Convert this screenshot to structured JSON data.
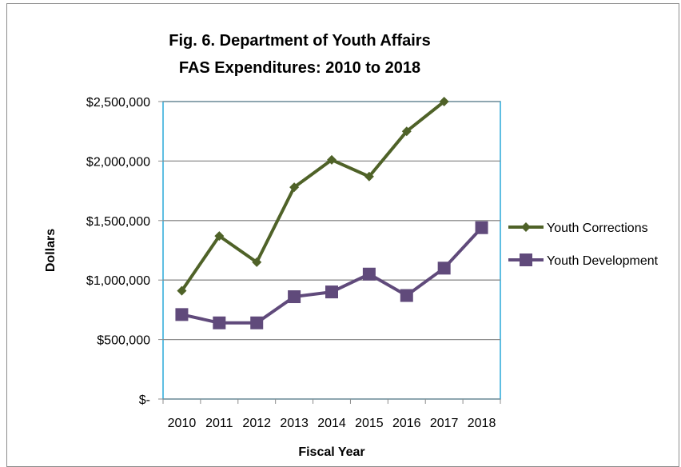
{
  "chart_data": {
    "type": "line",
    "title_line1": "Fig. 6.  Department of Youth Affairs",
    "title_line2": "FAS Expenditures:  2010 to 2018",
    "xlabel": "Fiscal Year",
    "ylabel": "Dollars",
    "categories": [
      "2010",
      "2011",
      "2012",
      "2013",
      "2014",
      "2015",
      "2016",
      "2017",
      "2018"
    ],
    "ylim": [
      0,
      2500000
    ],
    "yticks": [
      {
        "value": 2500000,
        "label": "$2,500,000"
      },
      {
        "value": 2000000,
        "label": "$2,000,000"
      },
      {
        "value": 1500000,
        "label": "$1,500,000"
      },
      {
        "value": 1000000,
        "label": "$1,000,000"
      },
      {
        "value": 500000,
        "label": "$500,000"
      },
      {
        "value": 0,
        "label": "$-"
      }
    ],
    "grid": true,
    "legend_position": "right",
    "series": [
      {
        "name": "Youth Corrections",
        "color": "#4f6228",
        "marker": "diamond",
        "values": [
          910000,
          1370000,
          1150000,
          1780000,
          2010000,
          1870000,
          2250000,
          2500000,
          null
        ]
      },
      {
        "name": "Youth Development",
        "color": "#604a7b",
        "marker": "square",
        "values": [
          710000,
          640000,
          640000,
          860000,
          900000,
          1050000,
          870000,
          1100000,
          1440000
        ]
      }
    ],
    "plot_border_color": "#29a8d8"
  }
}
